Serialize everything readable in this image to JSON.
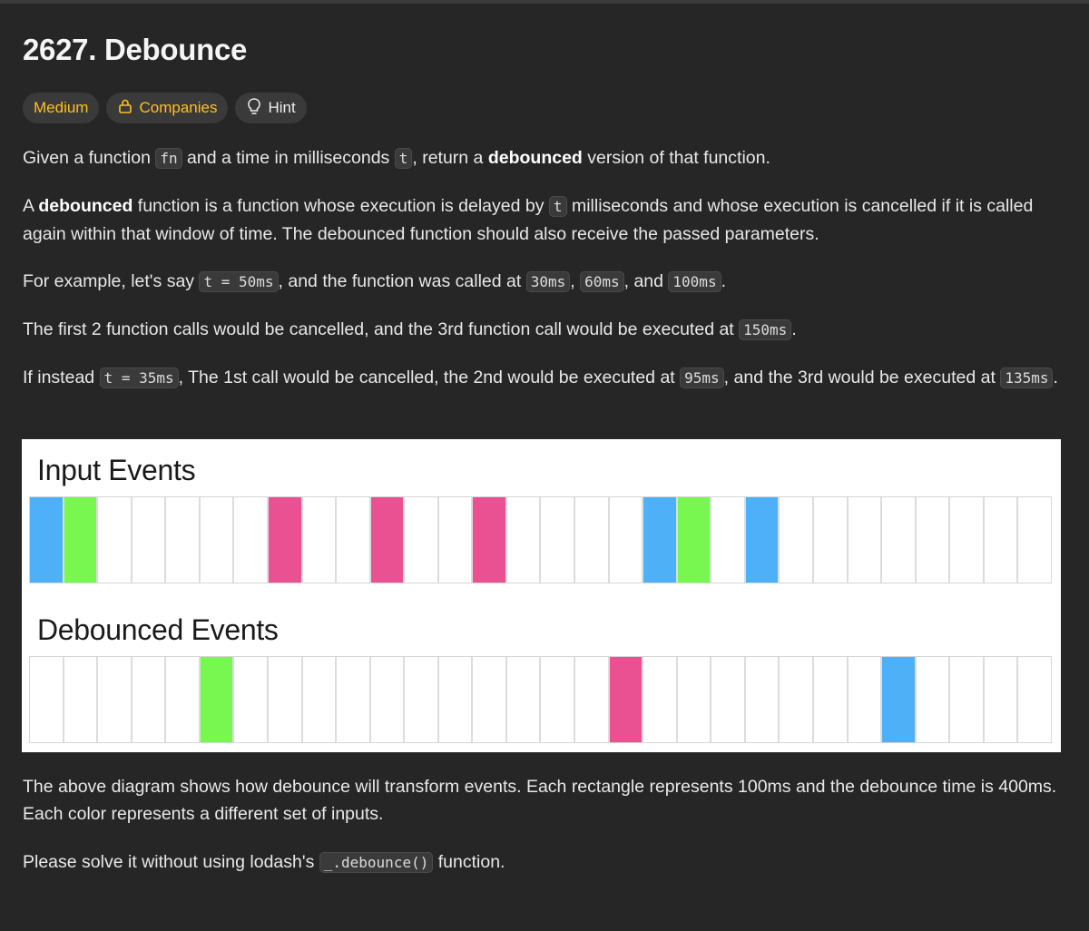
{
  "problem": {
    "title": "2627. Debounce",
    "tags": {
      "difficulty": "Medium",
      "companies": "Companies",
      "hint": "Hint"
    }
  },
  "description": {
    "p1": {
      "a": "Given a function ",
      "b": "fn",
      "c": " and a time in milliseconds ",
      "d": "t",
      "e": ", return a ",
      "f": "debounced",
      "g": " version of that function."
    },
    "p2": {
      "a": "A ",
      "b": "debounced",
      "c": " function is a function whose execution is delayed by ",
      "d": "t",
      "e": " milliseconds and whose execution is cancelled if it is called again within that window of time. The debounced function should also receive the passed parameters."
    },
    "p3": {
      "a": "For example, let's say ",
      "b": "t = 50ms",
      "c": ", and the function was called at ",
      "d": "30ms",
      "e": ", ",
      "f": "60ms",
      "g": ", and ",
      "h": "100ms",
      "i": "."
    },
    "p4": {
      "a": "The first 2 function calls would be cancelled, and the 3rd function call would be executed at ",
      "b": "150ms",
      "c": "."
    },
    "p5": {
      "a": "If instead ",
      "b": "t = 35ms",
      "c": ", The 1st call would be cancelled, the 2nd would be executed at ",
      "d": "95ms",
      "e": ", and the 3rd would be executed at ",
      "f": "135ms",
      "g": "."
    },
    "p6": {
      "a": "The above diagram shows how debounce will transform events. Each rectangle represents 100ms and the debounce time is 400ms. Each color represents a different set of inputs."
    },
    "p7": {
      "a": "Please solve it without using lodash's ",
      "b": "_.debounce()",
      "c": " function."
    }
  },
  "diagram": {
    "input_title": "Input Events",
    "debounced_title": "Debounced Events",
    "colors": {
      "blue": "#4eb1f7",
      "green": "#77f74f",
      "pink": "#ea5192"
    },
    "input_cells": [
      "blue",
      "green",
      "",
      "",
      "",
      "",
      "",
      "pink",
      "",
      "",
      "pink",
      "",
      "",
      "pink",
      "",
      "",
      "",
      "",
      "blue",
      "green",
      "",
      "blue",
      "",
      "",
      "",
      "",
      "",
      "",
      "",
      ""
    ],
    "debounced_cells": [
      "",
      "",
      "",
      "",
      "",
      "green",
      "",
      "",
      "",
      "",
      "",
      "",
      "",
      "",
      "",
      "",
      "",
      "pink",
      "",
      "",
      "",
      "",
      "",
      "",
      "",
      "blue",
      "",
      "",
      "",
      ""
    ]
  }
}
